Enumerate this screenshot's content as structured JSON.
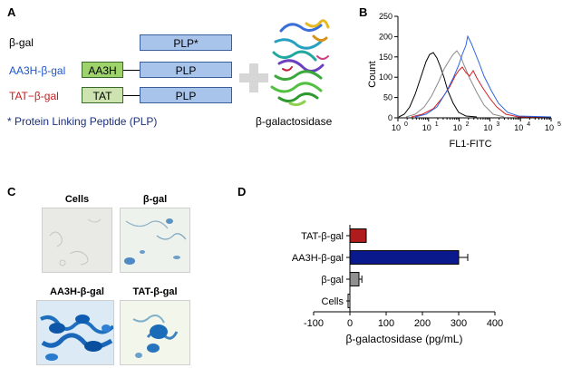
{
  "panels": {
    "a": "A",
    "b": "B",
    "c": "C",
    "d": "D"
  },
  "panelA": {
    "rows": [
      {
        "label": "β-gal",
        "color": "#000000",
        "tag": "",
        "box": "PLP*"
      },
      {
        "label": "AA3H-β-gal",
        "color": "#1f57c9",
        "tag": "AA3H",
        "tagColor": "#9ed36b",
        "box": "PLP"
      },
      {
        "label": "TAT−β-gal",
        "color": "#c81e1e",
        "tag": "TAT",
        "tagColor": "#cde3b0",
        "box": "PLP"
      }
    ],
    "footnote": "* Protein Linking Peptide (PLP)",
    "protein_label": "β-galactosidase"
  },
  "panelB": {
    "ylabel": "Count",
    "xlabel": "FL1-FITC",
    "x_ticks": [
      "10",
      "10",
      "10",
      "10",
      "10",
      "10"
    ],
    "x_exponents": [
      "0",
      "1",
      "2",
      "3",
      "4",
      "5"
    ],
    "y_ticks": [
      "0",
      "50",
      "100",
      "150",
      "200",
      "250"
    ]
  },
  "panelC": {
    "titles": [
      "Cells",
      "β-gal",
      "AA3H-β-gal",
      "TAT-β-gal"
    ]
  },
  "chart_data": {
    "type": "bar",
    "orientation": "horizontal",
    "categories": [
      "TAT-β-gal",
      "AA3H-β-gal",
      "β-gal",
      "Cells"
    ],
    "values": [
      45,
      300,
      25,
      -5
    ],
    "errors": [
      0,
      25,
      8,
      0
    ],
    "colors": [
      "#b01c1c",
      "#0a1a8c",
      "#909090",
      "#ffffff"
    ],
    "xlabel": "β-galactosidase (pg/mL)",
    "ylabel": "",
    "xlim": [
      -100,
      400
    ],
    "x_ticks": [
      "-100",
      "0",
      "100",
      "200",
      "300",
      "400"
    ],
    "grid": false
  }
}
